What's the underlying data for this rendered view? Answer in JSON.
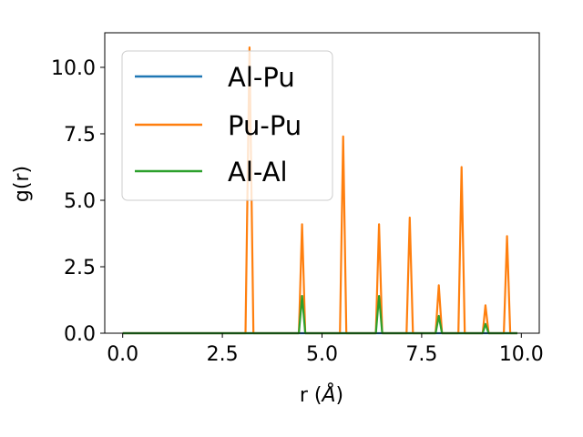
{
  "chart_data": {
    "type": "line",
    "title": "",
    "xlabel_main": "r (",
    "xlabel_unit": "Å",
    "xlabel_close": ")",
    "ylabel": "g(r)",
    "xlim": [
      -0.45,
      10.45
    ],
    "ylim": [
      0.0,
      11.3
    ],
    "xticks": [
      0.0,
      2.5,
      5.0,
      7.5,
      10.0
    ],
    "xtick_labels": [
      "0.0",
      "2.5",
      "5.0",
      "7.5",
      "10.0"
    ],
    "yticks": [
      0.0,
      2.5,
      5.0,
      7.5,
      10.0
    ],
    "ytick_labels": [
      "0.0",
      "2.5",
      "5.0",
      "7.5",
      "10.0"
    ],
    "grid": false,
    "legend_position": "upper-left",
    "series": [
      {
        "name": "Al-Pu",
        "color": "#1f77b4",
        "x": [
          0.0,
          9.9
        ],
        "y": [
          0.0,
          0.0
        ]
      },
      {
        "name": "Pu-Pu",
        "color": "#ff7f0e",
        "x": [
          0.0,
          3.08,
          3.18,
          3.28,
          4.42,
          4.5,
          4.58,
          5.45,
          5.53,
          5.61,
          6.35,
          6.43,
          6.51,
          7.12,
          7.2,
          7.28,
          7.85,
          7.93,
          8.01,
          8.42,
          8.5,
          8.58,
          9.03,
          9.1,
          9.18,
          9.56,
          9.64,
          9.72,
          9.9
        ],
        "y": [
          0.0,
          0.0,
          10.75,
          0.0,
          0.0,
          4.1,
          0.0,
          0.0,
          7.4,
          0.0,
          0.0,
          4.1,
          0.0,
          0.0,
          4.35,
          0.0,
          0.0,
          1.8,
          0.0,
          0.0,
          6.25,
          0.0,
          0.0,
          1.05,
          0.0,
          0.0,
          3.65,
          0.0,
          0.0
        ]
      },
      {
        "name": "Al-Al",
        "color": "#2ca02c",
        "x": [
          0.0,
          4.42,
          4.5,
          4.58,
          6.35,
          6.43,
          6.51,
          7.85,
          7.93,
          8.01,
          9.03,
          9.1,
          9.18,
          9.9
        ],
        "y": [
          0.0,
          0.0,
          1.4,
          0.0,
          0.0,
          1.4,
          0.0,
          0.0,
          0.65,
          0.0,
          0.0,
          0.35,
          0.0,
          0.0
        ]
      }
    ]
  }
}
